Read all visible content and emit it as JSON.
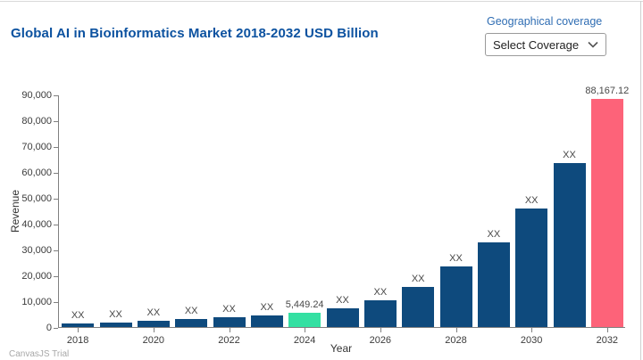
{
  "header": {
    "title": "Global AI in Bioinformatics Market 2018-2032 USD Billion",
    "coverage_label": "Geographical coverage",
    "coverage_selected": "Select Coverage"
  },
  "footer": {
    "credit": "CanvasJS Trial"
  },
  "colors": {
    "bar_default": "#0E4A7D",
    "bar_2024": "#34E0A2",
    "bar_2032": "#FD6379",
    "title_text": "#0C52A0",
    "coverage_label_text": "#2F6DB3"
  },
  "chart_data": {
    "type": "bar",
    "title": "",
    "xlabel": "Year",
    "ylabel": "Revenue",
    "ylim": [
      0,
      90000
    ],
    "grid": false,
    "legend": "none",
    "categories": [
      "2018",
      "2019",
      "2020",
      "2021",
      "2022",
      "2023",
      "2024",
      "2025",
      "2026",
      "2027",
      "2028",
      "2029",
      "2030",
      "2031",
      "2032"
    ],
    "values": [
      1300,
      1750,
      2400,
      3100,
      3800,
      4550,
      5449.24,
      7100,
      10500,
      15600,
      23400,
      32900,
      45700,
      63400,
      88167.12
    ],
    "bar_labels": [
      "XX",
      "XX",
      "XX",
      "XX",
      "XX",
      "XX",
      "5,449.24",
      "XX",
      "XX",
      "XX",
      "XX",
      "XX",
      "XX",
      "XX",
      "88,167.12"
    ],
    "bar_colors": {
      "2024": "#34E0A2",
      "2032": "#FD6379"
    },
    "ytick_labels": [
      "0",
      "10,000",
      "20,000",
      "30,000",
      "40,000",
      "50,000",
      "60,000",
      "70,000",
      "80,000",
      "90,000"
    ],
    "xtick_labels": [
      "2018",
      "2020",
      "2022",
      "2024",
      "2026",
      "2028",
      "2030",
      "2032"
    ],
    "note": "values for bars labeled XX are estimated from pixel heights"
  }
}
